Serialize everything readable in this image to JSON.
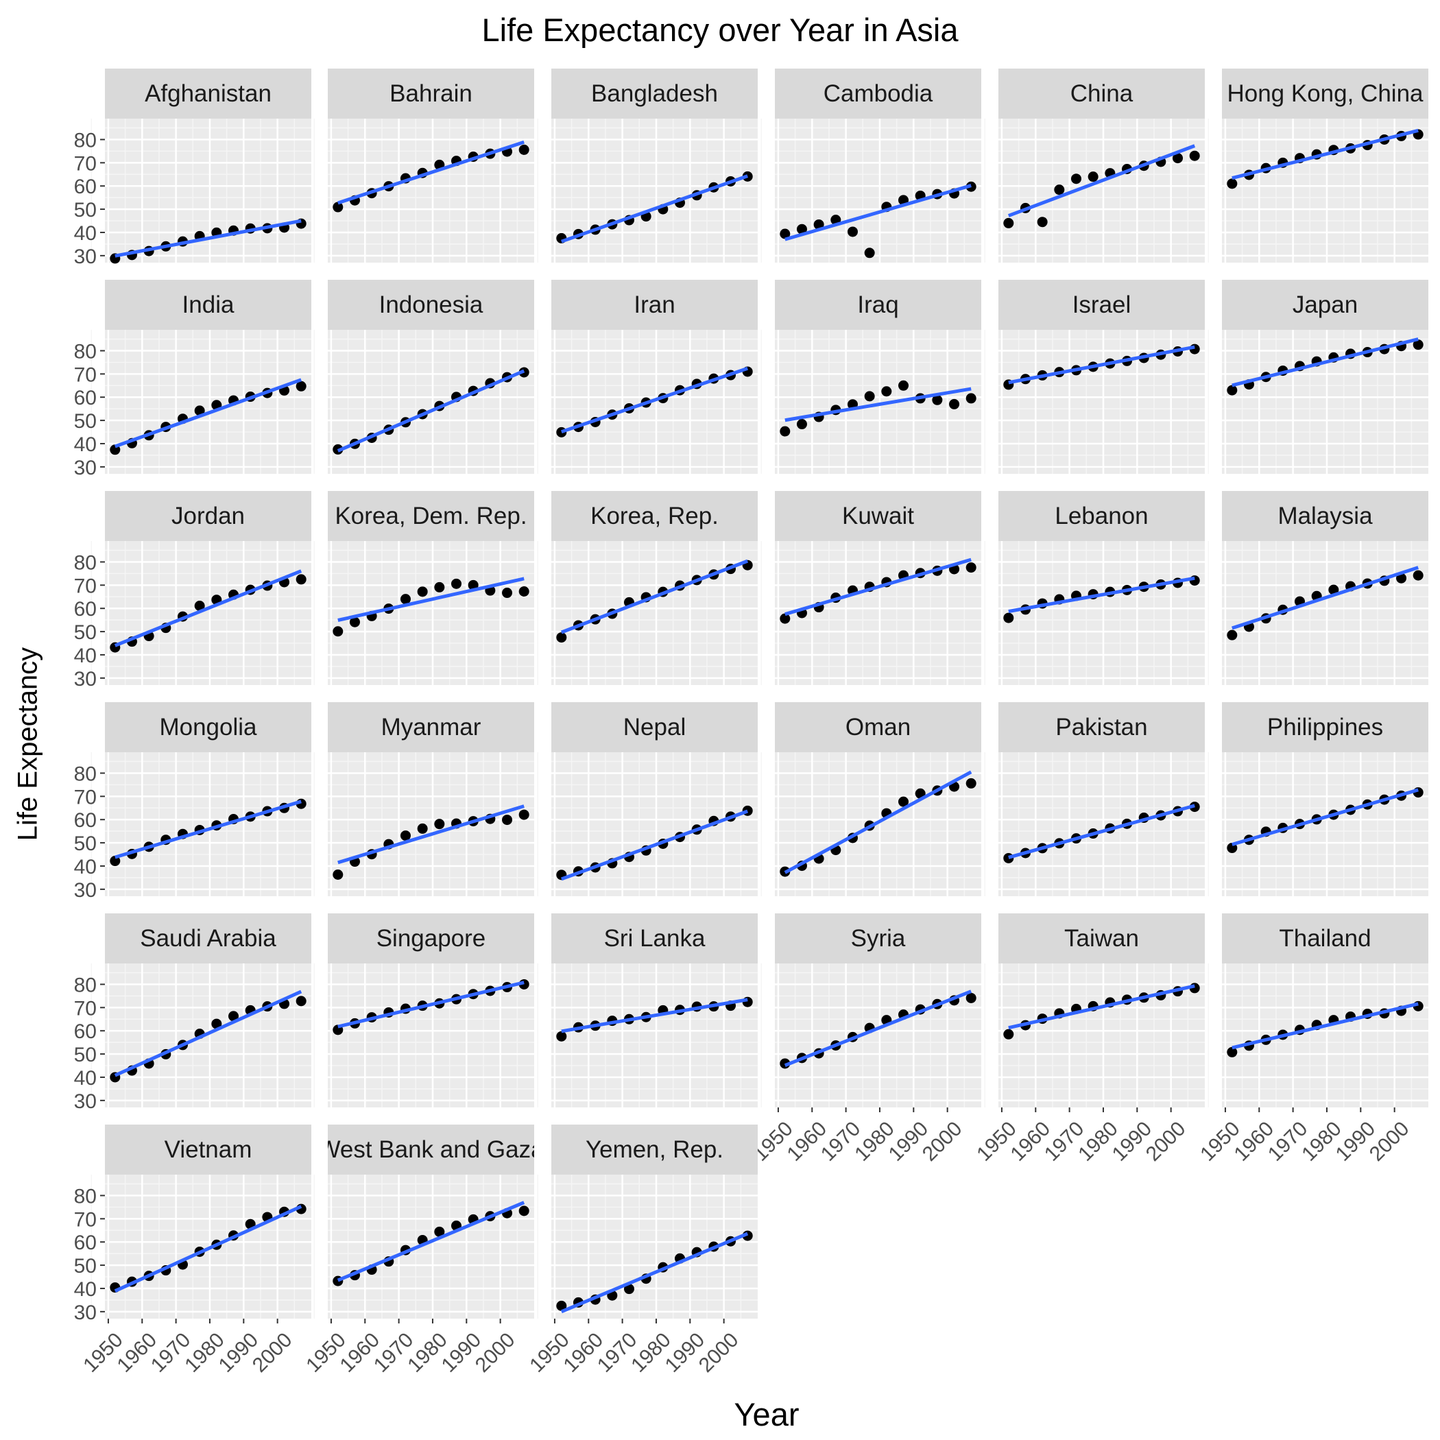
{
  "chart_data": {
    "type": "scatter",
    "title": "Life Expectancy over Year in Asia",
    "xlabel": "Year",
    "ylabel": "Life Expectancy",
    "xlim": [
      1949,
      2010
    ],
    "ylim": [
      27,
      89
    ],
    "x_ticks": [
      1950,
      1960,
      1970,
      1980,
      1990,
      2000
    ],
    "y_ticks": [
      30,
      40,
      50,
      60,
      70,
      80
    ],
    "x": [
      1952,
      1957,
      1962,
      1967,
      1972,
      1977,
      1982,
      1987,
      1992,
      1997,
      2002,
      2007
    ],
    "grid": true,
    "legend": "none",
    "colors": {
      "panel_background": "#ebebeb",
      "grid_major": "#ffffff",
      "grid_minor": "#f5f5f5",
      "strip_background": "#d9d9d9",
      "strip_text": "#1a1a1a",
      "tick_text": "#4d4d4d",
      "points": "#000000",
      "trend_line": "#3366ff"
    },
    "panels": [
      {
        "name": "Afghanistan",
        "values": [
          28.8,
          30.3,
          32.0,
          34.0,
          36.1,
          38.4,
          39.9,
          40.8,
          41.7,
          41.8,
          42.1,
          43.8
        ],
        "fit": [
          29.9,
          45.0
        ]
      },
      {
        "name": "Bahrain",
        "values": [
          50.9,
          53.8,
          56.9,
          59.9,
          63.3,
          65.6,
          69.1,
          70.8,
          72.6,
          73.9,
          74.8,
          75.6
        ],
        "fit": [
          52.7,
          78.9
        ]
      },
      {
        "name": "Bangladesh",
        "values": [
          37.5,
          39.3,
          41.2,
          43.5,
          45.3,
          46.9,
          50.0,
          52.8,
          56.0,
          59.4,
          62.0,
          64.1
        ],
        "fit": [
          36.1,
          64.3
        ]
      },
      {
        "name": "Cambodia",
        "values": [
          39.4,
          41.4,
          43.4,
          45.4,
          40.3,
          31.2,
          51.0,
          53.9,
          55.8,
          56.5,
          56.8,
          59.7
        ],
        "fit": [
          37.0,
          60.2
        ]
      },
      {
        "name": "China",
        "values": [
          44.0,
          50.5,
          44.5,
          58.4,
          63.1,
          64.0,
          65.5,
          67.3,
          68.7,
          70.4,
          72.0,
          73.0
        ],
        "fit": [
          47.2,
          77.3
        ]
      },
      {
        "name": "Hong Kong, China",
        "values": [
          61.0,
          64.8,
          67.7,
          70.0,
          72.0,
          73.6,
          75.5,
          76.2,
          77.6,
          80.0,
          81.5,
          82.2
        ],
        "fit": [
          63.4,
          83.9
        ]
      },
      {
        "name": "India",
        "values": [
          37.4,
          40.2,
          43.6,
          47.2,
          50.7,
          54.2,
          56.6,
          58.6,
          60.2,
          61.8,
          62.9,
          64.7
        ],
        "fit": [
          38.8,
          67.5
        ]
      },
      {
        "name": "Indonesia",
        "values": [
          37.5,
          39.9,
          42.5,
          46.0,
          49.2,
          52.7,
          56.2,
          60.1,
          62.7,
          66.0,
          68.6,
          70.7
        ],
        "fit": [
          36.9,
          71.3
        ]
      },
      {
        "name": "Iran",
        "values": [
          44.9,
          47.2,
          49.3,
          52.5,
          55.2,
          57.7,
          59.6,
          63.0,
          65.7,
          68.0,
          69.5,
          71.0
        ],
        "fit": [
          45.1,
          72.4
        ]
      },
      {
        "name": "Iraq",
        "values": [
          45.3,
          48.4,
          51.5,
          54.5,
          56.9,
          60.4,
          62.5,
          65.0,
          59.5,
          58.8,
          57.0,
          59.5
        ],
        "fit": [
          50.1,
          63.6
        ]
      },
      {
        "name": "Israel",
        "values": [
          65.4,
          67.8,
          69.4,
          70.8,
          71.6,
          73.1,
          74.5,
          75.6,
          76.9,
          78.3,
          79.7,
          80.7
        ],
        "fit": [
          66.3,
          81.6
        ]
      },
      {
        "name": "Japan",
        "values": [
          63.0,
          65.5,
          68.7,
          71.4,
          73.4,
          75.4,
          77.1,
          78.7,
          79.4,
          80.7,
          82.0,
          82.6
        ],
        "fit": [
          65.1,
          85.0
        ]
      },
      {
        "name": "Jordan",
        "values": [
          43.2,
          45.7,
          48.1,
          51.6,
          56.5,
          61.1,
          63.7,
          65.9,
          68.0,
          69.8,
          71.3,
          72.5
        ],
        "fit": [
          44.0,
          76.1
        ]
      },
      {
        "name": "Korea, Dem. Rep.",
        "values": [
          50.1,
          54.1,
          56.7,
          59.9,
          64.0,
          67.2,
          69.1,
          70.6,
          70.0,
          67.7,
          66.7,
          67.3
        ],
        "fit": [
          54.9,
          72.8
        ]
      },
      {
        "name": "Korea, Rep.",
        "values": [
          47.5,
          52.7,
          55.3,
          57.7,
          62.6,
          64.8,
          67.1,
          69.8,
          72.2,
          74.6,
          77.0,
          78.6
        ],
        "fit": [
          49.7,
          80.4
        ]
      },
      {
        "name": "Kuwait",
        "values": [
          55.6,
          58.0,
          60.5,
          64.6,
          67.7,
          69.3,
          71.3,
          74.2,
          75.2,
          76.2,
          76.9,
          77.6
        ],
        "fit": [
          57.5,
          81.0
        ]
      },
      {
        "name": "Lebanon",
        "values": [
          55.9,
          59.5,
          62.1,
          63.9,
          65.4,
          66.1,
          67.1,
          67.9,
          69.3,
          70.3,
          71.0,
          72.0
        ],
        "fit": [
          58.7,
          73.0
        ]
      },
      {
        "name": "Malaysia",
        "values": [
          48.5,
          52.1,
          55.7,
          59.4,
          63.0,
          65.3,
          68.0,
          69.5,
          70.7,
          71.9,
          73.0,
          74.2
        ],
        "fit": [
          51.5,
          77.6
        ]
      },
      {
        "name": "Mongolia",
        "values": [
          42.2,
          45.2,
          48.3,
          51.3,
          53.8,
          55.5,
          57.5,
          60.2,
          61.3,
          63.6,
          65.0,
          66.8
        ],
        "fit": [
          43.8,
          67.8
        ]
      },
      {
        "name": "Myanmar",
        "values": [
          36.3,
          41.9,
          45.1,
          49.4,
          53.1,
          56.1,
          58.1,
          58.3,
          59.3,
          60.3,
          59.9,
          62.1
        ],
        "fit": [
          41.5,
          65.8
        ]
      },
      {
        "name": "Nepal",
        "values": [
          36.2,
          37.7,
          39.4,
          41.2,
          43.9,
          46.7,
          49.6,
          52.5,
          55.7,
          59.4,
          61.3,
          63.8
        ],
        "fit": [
          34.4,
          63.6
        ]
      },
      {
        "name": "Oman",
        "values": [
          37.6,
          40.1,
          43.2,
          46.9,
          52.1,
          57.4,
          62.7,
          67.7,
          71.2,
          72.5,
          74.2,
          75.6
        ],
        "fit": [
          37.2,
          80.5
        ]
      },
      {
        "name": "Pakistan",
        "values": [
          43.4,
          45.6,
          47.7,
          49.8,
          51.9,
          54.0,
          56.2,
          58.2,
          60.8,
          61.8,
          63.6,
          65.5
        ],
        "fit": [
          43.7,
          66.0
        ]
      },
      {
        "name": "Philippines",
        "values": [
          47.8,
          51.3,
          54.8,
          56.4,
          58.1,
          60.1,
          62.1,
          64.2,
          66.5,
          68.6,
          70.3,
          71.7
        ],
        "fit": [
          49.3,
          72.8
        ]
      },
      {
        "name": "Saudi Arabia",
        "values": [
          40.0,
          42.9,
          45.9,
          49.9,
          53.9,
          58.7,
          63.0,
          66.3,
          68.8,
          70.5,
          71.6,
          72.8
        ],
        "fit": [
          40.8,
          76.9
        ]
      },
      {
        "name": "Singapore",
        "values": [
          60.4,
          63.2,
          65.8,
          67.9,
          69.5,
          70.8,
          71.8,
          73.6,
          75.8,
          77.2,
          78.8,
          80.0
        ],
        "fit": [
          61.8,
          80.8
        ]
      },
      {
        "name": "Sri Lanka",
        "values": [
          57.6,
          61.5,
          62.2,
          64.3,
          65.0,
          65.9,
          68.8,
          69.0,
          70.4,
          70.5,
          70.8,
          72.4
        ],
        "fit": [
          59.8,
          73.4
        ]
      },
      {
        "name": "Syria",
        "values": [
          45.9,
          48.3,
          50.3,
          53.7,
          57.3,
          61.2,
          64.6,
          66.97,
          69.2,
          71.5,
          73.1,
          74.1
        ],
        "fit": [
          45.1,
          77.0
        ]
      },
      {
        "name": "Taiwan",
        "values": [
          58.5,
          62.4,
          65.2,
          67.5,
          69.4,
          70.6,
          72.2,
          73.4,
          74.3,
          75.3,
          77.0,
          78.4
        ],
        "fit": [
          61.3,
          79.3
        ]
      },
      {
        "name": "Thailand",
        "values": [
          50.8,
          53.6,
          56.1,
          58.3,
          60.4,
          62.5,
          64.6,
          66.1,
          67.3,
          67.5,
          68.6,
          70.6
        ],
        "fit": [
          52.7,
          71.6
        ]
      },
      {
        "name": "Vietnam",
        "values": [
          40.4,
          42.9,
          45.4,
          47.8,
          50.3,
          55.8,
          58.8,
          62.8,
          67.7,
          70.7,
          73.0,
          74.2
        ],
        "fit": [
          38.9,
          75.3
        ]
      },
      {
        "name": "West Bank and Gaza",
        "values": [
          43.2,
          45.7,
          48.1,
          51.6,
          56.5,
          60.8,
          64.4,
          67.0,
          69.7,
          71.1,
          72.4,
          73.4
        ],
        "fit": [
          43.5,
          77.0
        ]
      },
      {
        "name": "Yemen, Rep.",
        "values": [
          32.5,
          33.97,
          35.2,
          36.98,
          39.8,
          44.2,
          49.1,
          52.9,
          55.6,
          58.0,
          60.3,
          62.7
        ],
        "fit": [
          30.0,
          63.6
        ]
      }
    ]
  }
}
